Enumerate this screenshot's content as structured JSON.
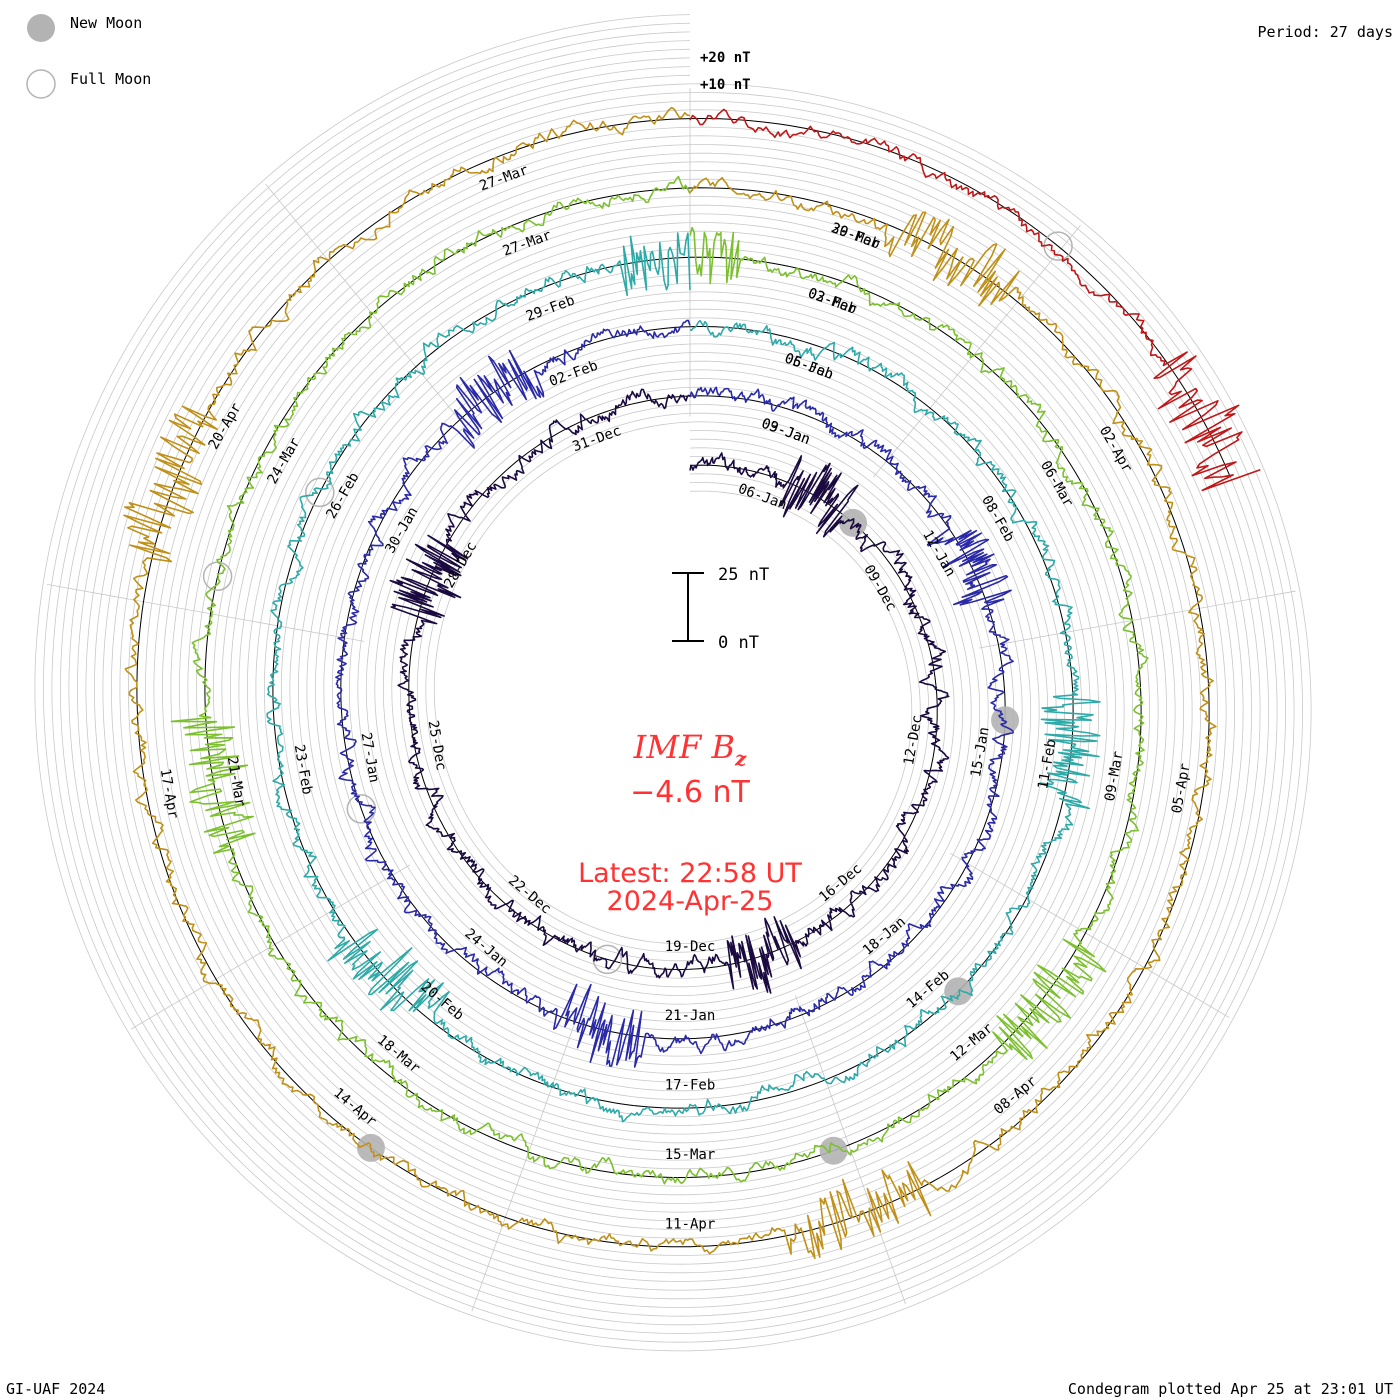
{
  "legend": {
    "new_moon_label": "New Moon",
    "full_moon_label": "Full Moon",
    "new_moon_color": "#b3b3b3",
    "full_moon_color": "#b3b3b3"
  },
  "period_label": "Period: 27 days",
  "footer": {
    "credit": "GI-UAF 2024",
    "plotted": "Condegram plotted Apr 25 at 23:01 UT"
  },
  "center": {
    "parameter": "IMF B",
    "parameter_subscript": "z",
    "value": "−4.6 nT",
    "latest_time": "Latest: 22:58 UT",
    "latest_date": "2024-Apr-25",
    "text_color": "#ff3333"
  },
  "chart_data": {
    "type": "line",
    "title": "IMF Bz condegram",
    "period_days": 27,
    "scale_bar": {
      "top_label": "25 nT",
      "bottom_label": "0 nT",
      "span_nT": 25
    },
    "ring_scale_labels": [
      "+20 nT",
      "+10 nT"
    ],
    "ring_baseline_nT": 0,
    "turns": [
      {
        "index": 1,
        "color": "#1a0a40",
        "start": "2023-Dec-08",
        "labels": [
          "06-Jan",
          "09-Dec",
          "12-Dec",
          "16-Dec",
          "19-Dec",
          "22-Dec",
          "25-Dec",
          "28-Dec",
          "31-Dec",
          "03-Jan"
        ]
      },
      {
        "index": 2,
        "color": "#2a2aa8",
        "start": "2024-Jan-04",
        "labels": [
          "09-Jan",
          "12-Jan",
          "15-Jan",
          "18-Jan",
          "21-Jan",
          "24-Jan",
          "27-Jan",
          "30-Jan",
          "02-Feb",
          "06-Jan"
        ]
      },
      {
        "index": 3,
        "color": "#2eaaa8",
        "start": "2024-Jan-31",
        "labels": [
          "05-Feb",
          "08-Feb",
          "11-Feb",
          "14-Feb",
          "17-Feb",
          "20-Feb",
          "23-Feb",
          "26-Feb",
          "29-Feb",
          "02-Feb"
        ]
      },
      {
        "index": 4,
        "color": "#7cc030",
        "start": "2024-Feb-27",
        "labels": [
          "03-Mar",
          "06-Mar",
          "09-Mar",
          "12-Mar",
          "15-Mar",
          "18-Mar",
          "21-Mar",
          "24-Mar",
          "27-Mar",
          "29-Feb"
        ]
      },
      {
        "index": 5,
        "color": "#c09018",
        "start": "2024-Mar-25",
        "labels": [
          "30-Mar",
          "02-Apr",
          "05-Apr",
          "08-Apr",
          "11-Apr",
          "14-Apr",
          "17-Apr",
          "20-Apr",
          "27-Mar"
        ]
      },
      {
        "index": 6,
        "color": "#c01818",
        "start": "2024-Apr-21",
        "labels": []
      }
    ],
    "moon_markers": [
      {
        "phase": "new",
        "turn": 1,
        "date": "11-Dec"
      },
      {
        "phase": "new",
        "turn": 2,
        "date": "11-Jan"
      },
      {
        "phase": "new",
        "turn": 3,
        "date": "10-Feb"
      },
      {
        "phase": "new",
        "turn": 4,
        "date": "10-Mar"
      },
      {
        "phase": "new",
        "turn": 5,
        "date": "08-Apr"
      },
      {
        "phase": "full",
        "turn": 1,
        "date": "27-Dec"
      },
      {
        "phase": "full",
        "turn": 2,
        "date": "25-Jan"
      },
      {
        "phase": "full",
        "turn": 3,
        "date": "24-Feb"
      },
      {
        "phase": "full",
        "turn": 4,
        "date": "25-Mar"
      },
      {
        "phase": "full",
        "turn": 6,
        "date": "23-Apr"
      }
    ]
  }
}
